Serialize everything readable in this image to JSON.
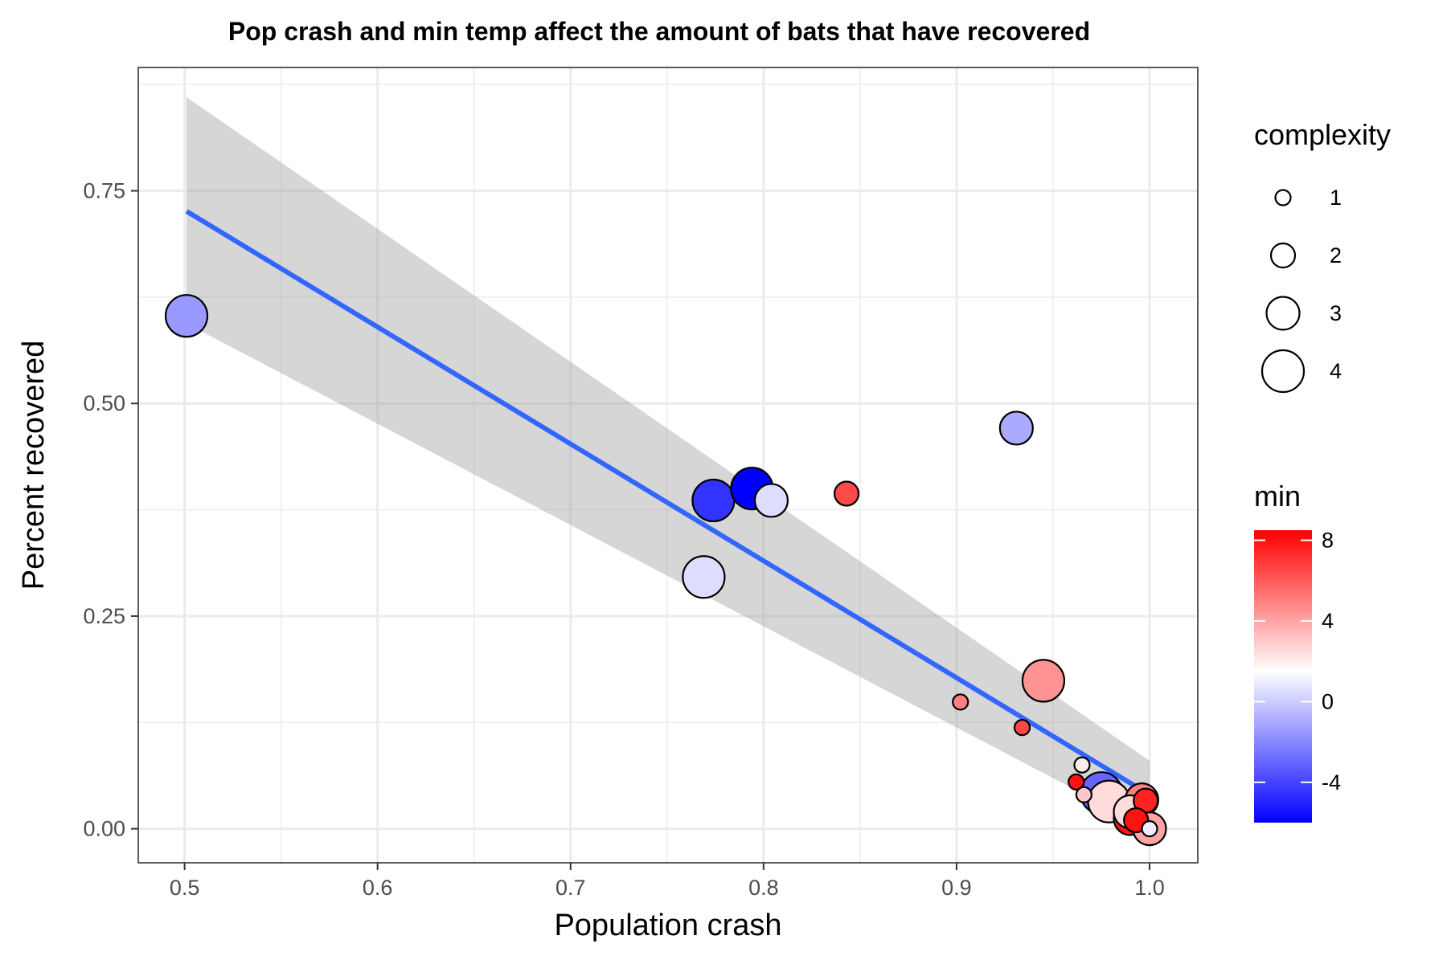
{
  "chart_data": {
    "type": "scatter",
    "title": "Pop crash and min temp affect the amount of bats that have recovered",
    "xlabel": "Population crash",
    "ylabel": "Percent recovered",
    "xlim": [
      0.476,
      1.025
    ],
    "ylim": [
      -0.04,
      0.895
    ],
    "x_ticks": [
      0.5,
      0.6,
      0.7,
      0.8,
      0.9,
      1.0
    ],
    "x_tick_labels": [
      "0.5",
      "0.6",
      "0.7",
      "0.8",
      "0.9",
      "1.0"
    ],
    "y_ticks": [
      0.0,
      0.25,
      0.5,
      0.75
    ],
    "y_tick_labels": [
      "0.00",
      "0.25",
      "0.50",
      "0.75"
    ],
    "grid": true,
    "points": [
      {
        "x": 0.501,
        "y": 0.603,
        "complexity": 4,
        "min": -1.5
      },
      {
        "x": 0.769,
        "y": 0.296,
        "complexity": 4,
        "min": 0.5
      },
      {
        "x": 0.774,
        "y": 0.386,
        "complexity": 4,
        "min": -4.5
      },
      {
        "x": 0.794,
        "y": 0.4,
        "complexity": 4,
        "min": -6
      },
      {
        "x": 0.804,
        "y": 0.386,
        "complexity": 3,
        "min": 0.5
      },
      {
        "x": 0.843,
        "y": 0.394,
        "complexity": 2,
        "min": 6.5
      },
      {
        "x": 0.931,
        "y": 0.471,
        "complexity": 3,
        "min": -1
      },
      {
        "x": 0.945,
        "y": 0.174,
        "complexity": 4,
        "min": 4.5
      },
      {
        "x": 0.902,
        "y": 0.149,
        "complexity": 1,
        "min": 5
      },
      {
        "x": 0.934,
        "y": 0.119,
        "complexity": 1,
        "min": 6.5
      },
      {
        "x": 0.965,
        "y": 0.075,
        "complexity": 1,
        "min": 2
      },
      {
        "x": 0.962,
        "y": 0.055,
        "complexity": 1,
        "min": 8
      },
      {
        "x": 0.966,
        "y": 0.04,
        "complexity": 1,
        "min": 3
      },
      {
        "x": 0.975,
        "y": 0.042,
        "complexity": 4,
        "min": -3
      },
      {
        "x": 0.979,
        "y": 0.032,
        "complexity": 4,
        "min": 2.5
      },
      {
        "x": 0.996,
        "y": 0.034,
        "complexity": 3,
        "min": 5
      },
      {
        "x": 0.998,
        "y": 0.033,
        "complexity": 2,
        "min": 7.5
      },
      {
        "x": 0.99,
        "y": 0.012,
        "complexity": 3,
        "min": 8
      },
      {
        "x": 0.993,
        "y": 0.01,
        "complexity": 2,
        "min": 8
      },
      {
        "x": 0.99,
        "y": 0.02,
        "complexity": 3,
        "min": 2.5
      },
      {
        "x": 1.0,
        "y": 0.0,
        "complexity": 3,
        "min": 4
      },
      {
        "x": 1.0,
        "y": 0.0,
        "complexity": 1,
        "min": 1
      }
    ],
    "trend": {
      "x": [
        0.501,
        1.0
      ],
      "y": [
        0.726,
        0.04
      ],
      "ci_upper": [
        0.86,
        0.08
      ],
      "ci_lower": [
        0.594,
        0.0
      ],
      "color": "#3366ff"
    },
    "legend_size": {
      "title": "complexity",
      "entries": [
        {
          "label": "1",
          "value": 1
        },
        {
          "label": "2",
          "value": 2
        },
        {
          "label": "3",
          "value": 3
        },
        {
          "label": "4",
          "value": 4
        }
      ]
    },
    "legend_color": {
      "title": "min",
      "range": [
        -6,
        8.5
      ],
      "ticks": [
        8,
        4,
        0,
        -4
      ],
      "tick_labels": [
        "8",
        "4",
        "0",
        "-4"
      ],
      "low_color": "#0000ff",
      "mid_color": "#ffffff",
      "high_color": "#ff0000",
      "midpoint": 1.5
    }
  }
}
